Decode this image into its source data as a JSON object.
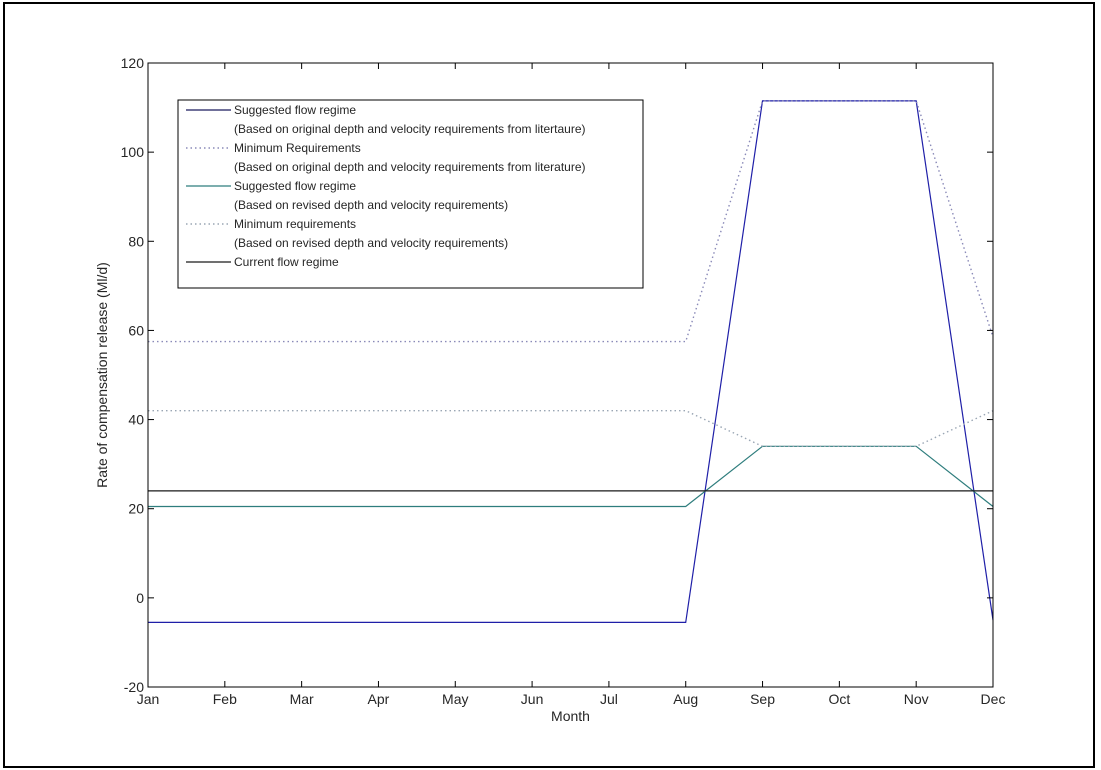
{
  "chart_data": {
    "type": "line",
    "title": "",
    "xlabel": "Month",
    "ylabel": "Rate of compensation release (Ml/d)",
    "categories": [
      "Jan",
      "Feb",
      "Mar",
      "Apr",
      "May",
      "Jun",
      "Jul",
      "Aug",
      "Sep",
      "Oct",
      "Nov",
      "Dec"
    ],
    "ylim": [
      -20,
      120
    ],
    "yticks": [
      -20,
      0,
      20,
      40,
      60,
      80,
      100,
      120
    ],
    "grid": false,
    "legend_position": "top-left",
    "series": [
      {
        "name": "Suggested flow regime",
        "name_detail": "(Based on original depth and velocity requirements from litertaure)",
        "color": "#1f1fa8",
        "dash": "solid",
        "legend_color": "#1a1a5e",
        "points": [
          [
            0,
            -5.5
          ],
          [
            7,
            -5.5
          ],
          [
            8,
            111.5
          ],
          [
            10,
            111.5
          ],
          [
            11,
            -5
          ]
        ]
      },
      {
        "name": "Minimum Requirements",
        "name_detail": "(Based on original depth and velocity requirements from literature)",
        "color": "#8a8ab8",
        "dash": "dotted",
        "points": [
          [
            0,
            57.5
          ],
          [
            7,
            57.5
          ],
          [
            8,
            111.5
          ],
          [
            10,
            111.5
          ],
          [
            11,
            58.5
          ]
        ]
      },
      {
        "name": "Suggested flow regime",
        "name_detail": "(Based on revised depth and velocity requirements)",
        "color": "#2e7d7d",
        "dash": "solid",
        "points": [
          [
            0,
            20.5
          ],
          [
            7,
            20.5
          ],
          [
            8,
            34
          ],
          [
            10,
            34
          ],
          [
            11,
            20.5
          ]
        ]
      },
      {
        "name": "Minimum requirements",
        "name_detail": "(Based on revised depth and velocity requirements)",
        "color": "#9aa6b4",
        "dash": "dotted",
        "points": [
          [
            0,
            42
          ],
          [
            7,
            42
          ],
          [
            8,
            34
          ],
          [
            10,
            34
          ],
          [
            11,
            42
          ]
        ]
      },
      {
        "name": "Current flow regime",
        "name_detail": "",
        "color": "#1a1a1a",
        "dash": "solid",
        "points": [
          [
            0,
            24
          ],
          [
            11,
            24
          ]
        ]
      }
    ]
  }
}
